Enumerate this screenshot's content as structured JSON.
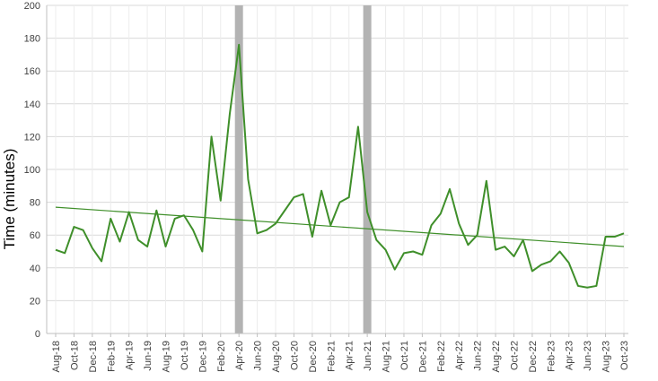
{
  "chart_data": {
    "type": "line",
    "ylabel": "Time (minutes)",
    "xlabel": "",
    "ylim": [
      0,
      200
    ],
    "y_ticks": [
      0,
      20,
      40,
      60,
      80,
      100,
      120,
      140,
      160,
      180,
      200
    ],
    "grid": "horizontal",
    "colors": {
      "series": "#3f8f2a",
      "trend": "#3f8f2a",
      "highlight_band": "#b3b3b3",
      "grid": "#d9d9d9",
      "axis": "#bfbfbf"
    },
    "categories": [
      "Aug-18",
      "Sep-18",
      "Oct-18",
      "Nov-18",
      "Dec-18",
      "Jan-19",
      "Feb-19",
      "Mar-19",
      "Apr-19",
      "May-19",
      "Jun-19",
      "Jul-19",
      "Aug-19",
      "Sep-19",
      "Oct-19",
      "Nov-19",
      "Dec-19",
      "Jan-20",
      "Feb-20",
      "Mar-20",
      "Apr-20",
      "May-20",
      "Jun-20",
      "Jul-20",
      "Aug-20",
      "Sep-20",
      "Oct-20",
      "Nov-20",
      "Dec-20",
      "Jan-21",
      "Feb-21",
      "Mar-21",
      "Apr-21",
      "May-21",
      "Jun-21",
      "Jul-21",
      "Aug-21",
      "Sep-21",
      "Oct-21",
      "Nov-21",
      "Dec-21",
      "Jan-22",
      "Feb-22",
      "Mar-22",
      "Apr-22",
      "May-22",
      "Jun-22",
      "Jul-22",
      "Aug-22",
      "Sep-22",
      "Oct-22",
      "Nov-22",
      "Dec-22",
      "Jan-23",
      "Feb-23",
      "Mar-23",
      "Apr-23",
      "May-23",
      "Jun-23",
      "Jul-23",
      "Aug-23",
      "Sep-23",
      "Oct-23"
    ],
    "tick_labels": [
      "Aug-18",
      "Oct-18",
      "Dec-18",
      "Feb-19",
      "Apr-19",
      "Jun-19",
      "Aug-19",
      "Oct-19",
      "Dec-19",
      "Feb-20",
      "Apr-20",
      "Jun-20",
      "Aug-20",
      "Oct-20",
      "Dec-20",
      "Feb-21",
      "Apr-21",
      "Jun-21",
      "Aug-21",
      "Oct-21",
      "Dec-21",
      "Feb-22",
      "Apr-22",
      "Jun-22",
      "Aug-22",
      "Oct-22",
      "Dec-22",
      "Feb-23",
      "Apr-23",
      "Jun-23",
      "Aug-23",
      "Oct-23"
    ],
    "series": [
      {
        "values": [
          51,
          49,
          65,
          63,
          52,
          44,
          70,
          56,
          74,
          57,
          53,
          75,
          53,
          70,
          72,
          63,
          50,
          120,
          81,
          134,
          176,
          94,
          61,
          63,
          67,
          75,
          83,
          85,
          59,
          87,
          66,
          80,
          83,
          126,
          74,
          57,
          51,
          39,
          49,
          50,
          48,
          66,
          73,
          88,
          67,
          54,
          60,
          93,
          51,
          53,
          47,
          57,
          38,
          42,
          44,
          50,
          43,
          29,
          28,
          29,
          59,
          59,
          61
        ]
      }
    ],
    "trendline": {
      "start": 77,
      "end": 53
    },
    "highlight_bands": [
      "Apr-20",
      "Jun-21"
    ]
  }
}
